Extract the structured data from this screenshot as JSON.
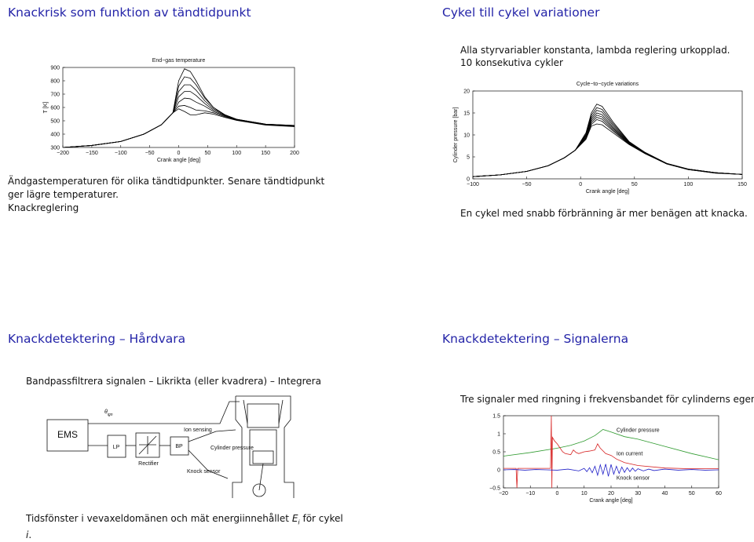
{
  "slides": [
    {
      "title": "Knackrisk som funktion av tändtidpunkt",
      "text": [
        "Ändgastemperaturen för olika tändtidpunkter. Senare tändtidpunkt",
        "ger lägre temperaturer.",
        "Knackreglering"
      ],
      "chart_data": {
        "type": "line",
        "title": "End−gas temperature",
        "xlabel": "Crank angle [deg]",
        "ylabel": "T [K]",
        "x": [
          -200,
          -150,
          -100,
          -60,
          -30,
          -10,
          0,
          10,
          20,
          30,
          45,
          60,
          80,
          100,
          150,
          200
        ],
        "xlim": [
          -200,
          200
        ],
        "ylim": [
          300,
          900
        ],
        "xticks": [
          {
            "value": -200,
            "label": "−200"
          },
          {
            "value": -150,
            "label": "−150"
          },
          {
            "value": -100,
            "label": "−100"
          },
          {
            "value": -50,
            "label": "−50"
          },
          0,
          50,
          100,
          150,
          200
        ],
        "yticks": [
          300,
          400,
          500,
          600,
          700,
          800,
          900
        ],
        "series": [
          {
            "color": "#000000",
            "values": [
              300,
              315,
              345,
              400,
              470,
              560,
              800,
              890,
              870,
              800,
              680,
              600,
              540,
              510,
              475,
              465
            ]
          },
          {
            "color": "#000000",
            "values": [
              300,
              315,
              345,
              400,
              470,
              560,
              760,
              830,
              820,
              770,
              670,
              600,
              545,
              512,
              475,
              465
            ]
          },
          {
            "color": "#000000",
            "values": [
              300,
              315,
              345,
              400,
              470,
              560,
              720,
              770,
              770,
              730,
              650,
              590,
              545,
              512,
              475,
              463
            ]
          },
          {
            "color": "#000000",
            "values": [
              300,
              315,
              345,
              400,
              470,
              560,
              680,
              720,
              720,
              690,
              630,
              580,
              540,
              510,
              473,
              462
            ]
          },
          {
            "color": "#000000",
            "values": [
              300,
              315,
              345,
              400,
              470,
              560,
              640,
              670,
              665,
              640,
              610,
              570,
              535,
              508,
              472,
              460
            ]
          },
          {
            "color": "#000000",
            "values": [
              300,
              315,
              345,
              400,
              470,
              560,
              610,
              615,
              600,
              580,
              575,
              560,
              530,
              505,
              470,
              458
            ]
          },
          {
            "color": "#000000",
            "values": [
              300,
              315,
              345,
              400,
              470,
              560,
              590,
              570,
              545,
              545,
              560,
              550,
              525,
              503,
              468,
              456
            ]
          }
        ]
      }
    },
    {
      "title": "Cykel till cykel variationer",
      "text": [
        "Alla styrvariabler konstanta, lambda reglering urkopplad.",
        "10 konsekutiva cykler",
        "En cykel med snabb förbränning är mer benägen att knacka."
      ],
      "chart_data": {
        "type": "line",
        "title": "Cycle−to−cycle variations",
        "xlabel": "Crank angle [deg]",
        "ylabel": "Cylinder pressure [bar]",
        "x": [
          -100,
          -75,
          -50,
          -30,
          -15,
          -5,
          5,
          10,
          15,
          20,
          30,
          45,
          60,
          80,
          100,
          125,
          150
        ],
        "xlim": [
          -100,
          150
        ],
        "ylim": [
          0,
          20
        ],
        "xticks": [
          {
            "value": -100,
            "label": "−100"
          },
          {
            "value": -50,
            "label": "−50"
          },
          0,
          50,
          100,
          150
        ],
        "yticks": [
          0,
          5,
          10,
          15,
          20
        ],
        "series": [
          {
            "color": "#000000",
            "values": [
              0.5,
              0.9,
              1.7,
              3.0,
              4.8,
              6.5,
              10.5,
              15,
              17,
              16.5,
              13,
              8.5,
              6,
              3.5,
              2.2,
              1.4,
              1
            ]
          },
          {
            "color": "#000000",
            "values": [
              0.5,
              0.9,
              1.7,
              3.0,
              4.8,
              6.5,
              10.2,
              14.5,
              16.2,
              15.8,
              12.6,
              8.4,
              6,
              3.5,
              2.2,
              1.4,
              1
            ]
          },
          {
            "color": "#000000",
            "values": [
              0.5,
              0.9,
              1.7,
              3.0,
              4.8,
              6.5,
              10,
              14,
              15.6,
              15.2,
              12.2,
              8.3,
              5.9,
              3.5,
              2.2,
              1.4,
              1
            ]
          },
          {
            "color": "#000000",
            "values": [
              0.5,
              0.9,
              1.7,
              3.0,
              4.8,
              6.5,
              9.8,
              13.6,
              15,
              14.6,
              11.8,
              8.2,
              5.9,
              3.5,
              2.2,
              1.4,
              1
            ]
          },
          {
            "color": "#000000",
            "values": [
              0.5,
              0.9,
              1.7,
              3.0,
              4.8,
              6.5,
              9.6,
              13.2,
              14.5,
              14.1,
              11.5,
              8.1,
              5.8,
              3.4,
              2.2,
              1.4,
              1
            ]
          },
          {
            "color": "#000000",
            "values": [
              0.5,
              0.9,
              1.7,
              3.0,
              4.8,
              6.5,
              9.4,
              12.8,
              14,
              13.6,
              11.2,
              8,
              5.8,
              3.4,
              2.1,
              1.4,
              1
            ]
          },
          {
            "color": "#000000",
            "values": [
              0.5,
              0.9,
              1.7,
              3.0,
              4.8,
              6.5,
              9.2,
              12.4,
              13.5,
              13.1,
              10.9,
              7.9,
              5.7,
              3.4,
              2.1,
              1.3,
              1
            ]
          },
          {
            "color": "#000000",
            "values": [
              0.5,
              0.9,
              1.7,
              3.0,
              4.8,
              6.5,
              9,
              12,
              12.5,
              12.3,
              10.5,
              7.8,
              5.7,
              3.4,
              2.1,
              1.3,
              1
            ]
          }
        ]
      }
    },
    {
      "title": "Knackdetektering – Hårdvara",
      "text": [
        "Bandpassfiltrera signalen – Likrikta (eller kvadrera) – Integrera"
      ],
      "footer": [
        "Tidsfönster i vevaxeldomänen och mät energiinnehållet",
        "E",
        "i",
        "för cykel",
        "i",
        "."
      ],
      "diagram": {
        "ems": "EMS",
        "lp": "LP",
        "bp": "BP",
        "rectifier": "Rectifier",
        "theta": "θ",
        "theta_sub": "ign",
        "ion": "Ion sensing",
        "pressure": "Cylinder pressure",
        "knock": "Knock sensor"
      }
    },
    {
      "title": "Knackdetektering – Signalerna",
      "text": [
        "Tre signaler med ringning i frekvensbandet för cylinderns egenmod."
      ],
      "chart_data": {
        "type": "line",
        "xlabel": "Crank angle [deg]",
        "xlim": [
          -20,
          60
        ],
        "ylim": [
          -0.5,
          1.5
        ],
        "xticks": [
          {
            "value": -20,
            "label": "−20"
          },
          {
            "value": -10,
            "label": "−10"
          },
          0,
          10,
          20,
          30,
          40,
          50,
          60
        ],
        "yticks": [
          {
            "value": -0.5,
            "label": "−0.5"
          },
          0,
          0.5,
          1,
          1.5
        ],
        "series": [
          {
            "name": "Cylinder pressure",
            "color": "#2e9a2e",
            "x": [
              -20,
              -10,
              0,
              5,
              10,
              14,
              17,
              20,
              25,
              30,
              40,
              50,
              60
            ],
            "values": [
              0.38,
              0.48,
              0.6,
              0.68,
              0.8,
              0.95,
              1.12,
              1.05,
              0.92,
              0.85,
              0.65,
              0.45,
              0.28
            ]
          },
          {
            "name": "Ion current",
            "color": "#d62020",
            "x": [
              -20,
              -15.3,
              -15,
              -14.7,
              -5,
              -2.5,
              -2.2,
              -2,
              -1.8,
              -1,
              0,
              2,
              3,
              5,
              6,
              7,
              8,
              10,
              12,
              14,
              15,
              16,
              18,
              20,
              22,
              25,
              30,
              40,
              50,
              60
            ],
            "values": [
              0.04,
              0.04,
              -0.5,
              0.04,
              0.04,
              0.04,
              1.5,
              -0.5,
              0.9,
              0.8,
              0.72,
              0.5,
              0.45,
              0.42,
              0.55,
              0.48,
              0.45,
              0.5,
              0.52,
              0.55,
              0.72,
              0.6,
              0.45,
              0.4,
              0.3,
              0.2,
              0.12,
              0.05,
              0.03,
              0.03
            ]
          },
          {
            "name": "Knock sensor",
            "color": "#2020c8",
            "x": [
              -20,
              -16,
              -12,
              -8,
              -4,
              0,
              4,
              8,
              10,
              11,
              12,
              13,
              14,
              15,
              16,
              17,
              18,
              19,
              20,
              21,
              22,
              23,
              24,
              25,
              26,
              27,
              28,
              29,
              30,
              32,
              34,
              36,
              40,
              45,
              50,
              55,
              60
            ],
            "values": [
              0,
              0.01,
              -0.01,
              0.01,
              0,
              -0.01,
              0.02,
              -0.03,
              0.04,
              -0.05,
              0.06,
              -0.08,
              0.1,
              -0.15,
              0.14,
              -0.12,
              0.16,
              -0.18,
              0.15,
              -0.12,
              0.1,
              -0.1,
              0.08,
              -0.07,
              0.06,
              -0.05,
              0.05,
              -0.04,
              0.03,
              -0.03,
              0.02,
              -0.02,
              0.02,
              -0.01,
              0.01,
              -0.01,
              0
            ]
          }
        ]
      }
    }
  ]
}
